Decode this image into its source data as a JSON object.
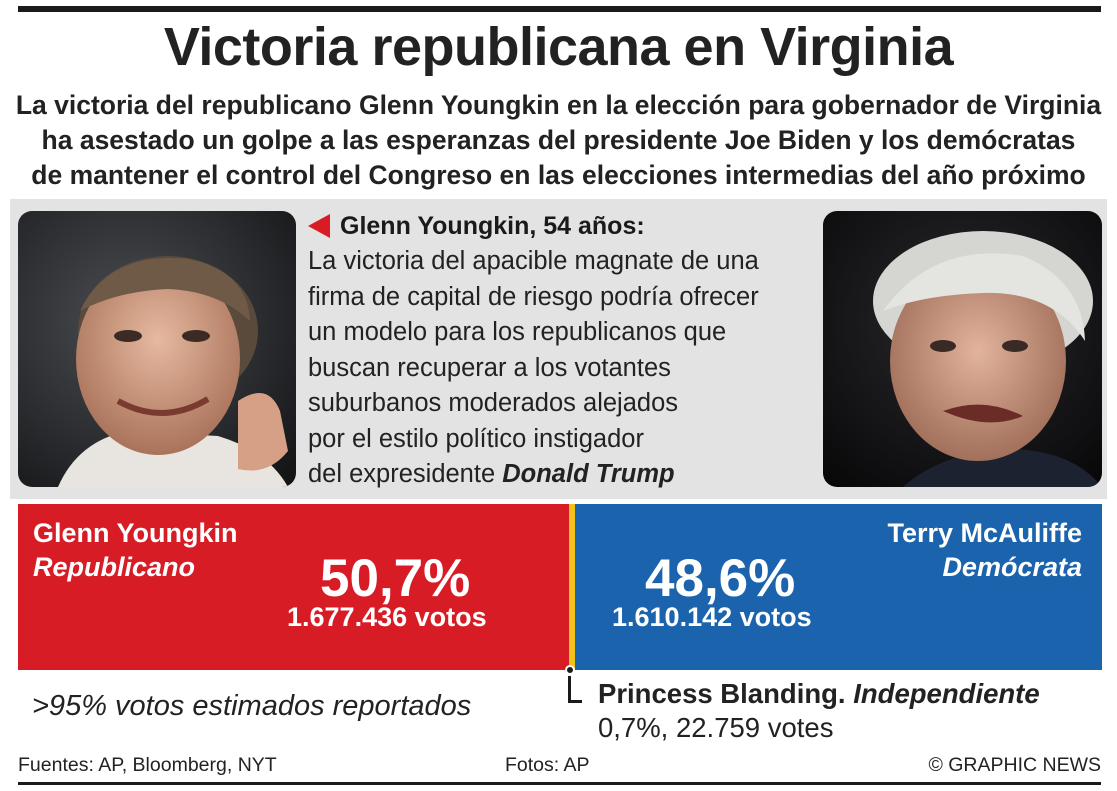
{
  "header": {
    "title": "Victoria republicana en Virginia",
    "subtitle_lines": [
      "La victoria del republicano Glenn Youngkin en la elección para gobernador de Virginia",
      "ha asestado un golpe a las esperanzas del presidente Joe Biden y los demócratas",
      "de mantener el control del Congreso en las elecciones intermedias del año próximo"
    ]
  },
  "bio": {
    "heading": "Glenn Youngkin, 54 años:",
    "lines": [
      "La victoria del apacible magnate de una",
      "firma de capital de riesgo podría ofrecer",
      "un modelo para los republicanos que",
      "buscan recuperar a los votantes",
      "suburbanos moderados alejados",
      "por el estilo político instigador"
    ],
    "last_line_prefix": "del expresidente",
    "last_line_emphasis": "Donald Trump"
  },
  "results": {
    "republican": {
      "name": "Glenn Youngkin",
      "party": "Republicano",
      "percent": "50,7%",
      "votes": "1.677.436 votos",
      "color": "#d81c26"
    },
    "democrat": {
      "name": "Terry McAuliffe",
      "party": "Demócrata",
      "percent": "48,6%",
      "votes": "1.610.142 votos",
      "color": "#1b64ad"
    },
    "divider_color": "#f2c21b",
    "reported_note": ">95% votos estimados reportados",
    "independent": {
      "name": "Princess Blanding.",
      "party": "Independiente",
      "result": "0,7%, 22.759 votes"
    }
  },
  "footer": {
    "sources": "Fuentes: AP, Bloomberg, NYT",
    "photos": "Fotos: AP",
    "credit": "© GRAPHIC NEWS"
  }
}
